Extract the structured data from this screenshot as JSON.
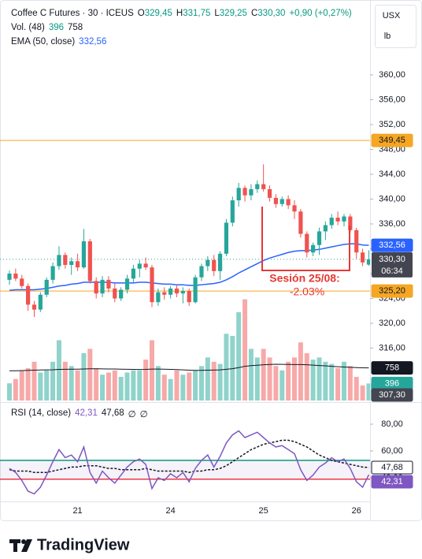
{
  "chart_data": [
    {
      "type": "candlestick",
      "title": "Coffee C Futures · 30 · ICEUS",
      "ohlc": [
        {
          "key": "O",
          "value": "329,45"
        },
        {
          "key": "H",
          "value": "331,75"
        },
        {
          "key": "L",
          "value": "329,25"
        },
        {
          "key": "C",
          "value": "330,30"
        }
      ],
      "change": "+0,90 (+0,27%)",
      "unit": "USX",
      "unit_sub": "lb",
      "x": [
        null,
        null,
        null,
        null,
        null,
        null,
        null,
        null,
        null,
        null,
        null,
        "21",
        null,
        null,
        null,
        null,
        null,
        null,
        null,
        null,
        null,
        null,
        null,
        null,
        null,
        null,
        "24",
        null,
        null,
        null,
        null,
        null,
        null,
        null,
        null,
        null,
        null,
        null,
        null,
        null,
        null,
        "25",
        null,
        null,
        null,
        null,
        null,
        null,
        null,
        null,
        null,
        null,
        null,
        null,
        null,
        null,
        "26",
        null,
        null
      ],
      "open": [
        327.0,
        328.0,
        327.2,
        326.0,
        323.0,
        322.2,
        324.6,
        327.0,
        329.2,
        331.0,
        329.4,
        330.0,
        329.0,
        333.2,
        326.8,
        324.8,
        327.0,
        325.6,
        324.0,
        325.4,
        327.2,
        328.8,
        329.6,
        329.0,
        323.4,
        325.0,
        324.6,
        325.6,
        324.8,
        325.2,
        323.4,
        327.4,
        329.2,
        330.2,
        328.4,
        331.2,
        336.2,
        339.8,
        341.8,
        340.6,
        341.6,
        342.4,
        341.6,
        340.2,
        339.2,
        340.0,
        339.0,
        338.0,
        334.4,
        331.4,
        332.6,
        334.8,
        335.8,
        337.0,
        336.4,
        337.2,
        335.0,
        331.4,
        329.45
      ],
      "high": [
        328.5,
        328.8,
        327.8,
        326.4,
        323.6,
        325.0,
        327.4,
        329.8,
        332.4,
        331.4,
        330.6,
        331.2,
        335.2,
        333.6,
        327.4,
        327.6,
        327.6,
        326.4,
        325.8,
        327.8,
        329.4,
        330.2,
        330.6,
        329.4,
        325.6,
        325.8,
        326.0,
        326.2,
        325.8,
        325.6,
        327.8,
        329.6,
        330.8,
        331.0,
        331.6,
        336.8,
        340.4,
        342.6,
        342.2,
        342.4,
        343.0,
        345.6,
        342.2,
        340.8,
        340.4,
        340.6,
        339.8,
        338.4,
        334.8,
        333.0,
        335.4,
        336.4,
        337.6,
        338.0,
        337.6,
        337.6,
        335.4,
        332.0,
        331.75
      ],
      "low": [
        326.2,
        326.8,
        325.6,
        322.0,
        321.0,
        321.8,
        324.2,
        326.4,
        328.6,
        328.8,
        327.8,
        328.4,
        328.8,
        326.4,
        324.0,
        324.2,
        325.0,
        323.4,
        323.6,
        324.8,
        326.6,
        327.4,
        328.6,
        322.6,
        322.8,
        323.8,
        324.0,
        324.2,
        323.2,
        322.8,
        323.2,
        326.8,
        328.4,
        327.6,
        327.0,
        330.8,
        335.6,
        338.8,
        339.6,
        339.8,
        341.0,
        341.2,
        339.6,
        338.6,
        338.8,
        338.4,
        336.8,
        333.8,
        330.6,
        330.8,
        331.0,
        333.4,
        335.2,
        335.8,
        335.6,
        334.6,
        330.4,
        329.2,
        329.25
      ],
      "close": [
        328.0,
        327.2,
        326.0,
        323.0,
        322.2,
        324.6,
        327.0,
        329.2,
        331.0,
        329.4,
        330.0,
        329.0,
        333.2,
        326.8,
        324.8,
        327.0,
        325.6,
        324.0,
        325.4,
        327.2,
        328.8,
        329.6,
        329.0,
        323.4,
        325.0,
        324.6,
        325.6,
        324.8,
        325.2,
        323.4,
        327.4,
        329.2,
        330.2,
        328.4,
        331.2,
        336.2,
        339.8,
        341.8,
        340.6,
        341.6,
        342.4,
        341.6,
        340.2,
        339.2,
        340.0,
        339.0,
        338.0,
        334.4,
        331.4,
        332.6,
        334.8,
        335.8,
        337.0,
        336.4,
        337.2,
        335.0,
        331.4,
        329.8,
        330.3
      ],
      "up_color": "#26a69a",
      "down_color": "#ef5350",
      "last": {
        "label": "330,30",
        "countdown": "06:34",
        "color": "#434651"
      },
      "ylim": [
        307.56,
        372.06
      ],
      "yticks": [
        {
          "value": 360,
          "label": "360,00"
        },
        {
          "value": 356,
          "label": "356,00"
        },
        {
          "value": 352,
          "label": "352,00"
        },
        {
          "value": 348,
          "label": "348,00"
        },
        {
          "value": 344,
          "label": "344,00"
        },
        {
          "value": 340,
          "label": "340,00"
        },
        {
          "value": 336,
          "label": "336,00"
        },
        {
          "value": 332,
          "label": "332,00"
        },
        {
          "value": 328,
          "label": "328,00"
        },
        {
          "value": 324,
          "label": "324,00"
        },
        {
          "value": 320,
          "label": "320,00"
        },
        {
          "value": 316,
          "label": "316,00"
        }
      ],
      "levels": [
        {
          "value": 349.45,
          "label": "349,45",
          "color": "#f5a623"
        },
        {
          "value": 325.2,
          "label": "325,20",
          "color": "#f5a623"
        }
      ],
      "cursor_price": {
        "value": 307.3,
        "label": "307,30",
        "color": "#434651"
      },
      "ema": {
        "name": "EMA (50, close)",
        "color": "#2962ff",
        "last_label": "332,56",
        "values": [
          325.3,
          325.4,
          325.4,
          325.4,
          325.4,
          325.5,
          325.6,
          325.8,
          326.0,
          326.1,
          326.3,
          326.4,
          326.6,
          326.6,
          326.6,
          326.6,
          326.6,
          326.5,
          326.5,
          326.5,
          326.5,
          326.6,
          326.6,
          326.5,
          326.4,
          326.3,
          326.3,
          326.2,
          326.2,
          326.1,
          326.1,
          326.2,
          326.3,
          326.4,
          326.6,
          327.0,
          327.5,
          328.1,
          328.6,
          329.1,
          329.6,
          330.1,
          330.5,
          330.8,
          331.1,
          331.4,
          331.6,
          331.7,
          331.7,
          331.8,
          331.9,
          332.1,
          332.3,
          332.5,
          332.7,
          332.8,
          332.8,
          332.6,
          332.56
        ]
      },
      "volume": {
        "name": "Vol. (48)",
        "ylim": [
          0,
          9300
        ],
        "up_color": "#8fd3cb",
        "down_color": "#f6a9a8",
        "ma_color": "#131722",
        "values": [
          400,
          500,
          700,
          750,
          900,
          650,
          700,
          900,
          1400,
          900,
          800,
          700,
          1100,
          1200,
          750,
          600,
          650,
          700,
          550,
          650,
          700,
          700,
          950,
          1400,
          800,
          600,
          500,
          700,
          600,
          650,
          700,
          800,
          1000,
          900,
          850,
          1550,
          1500,
          2050,
          2350,
          1200,
          1000,
          1200,
          1000,
          800,
          700,
          900,
          1000,
          1350,
          1100,
          950,
          1000,
          900,
          850,
          750,
          900,
          800,
          550,
          350,
          396
        ],
        "ma_values": [
          690,
          690,
          695,
          700,
          705,
          710,
          712,
          715,
          722,
          725,
          727,
          728,
          732,
          738,
          738,
          735,
          733,
          732,
          728,
          725,
          722,
          720,
          722,
          730,
          730,
          728,
          722,
          718,
          712,
          705,
          700,
          700,
          705,
          708,
          712,
          725,
          740,
          765,
          795,
          810,
          820,
          830,
          838,
          842,
          840,
          838,
          835,
          835,
          830,
          822,
          812,
          805,
          795,
          785,
          778,
          772,
          765,
          760,
          758
        ]
      },
      "annotation": {
        "text": "Sesión 25/08:",
        "value": "-2.03%",
        "color": "#e53935"
      },
      "grid": false
    },
    {
      "type": "line",
      "title": "RSI (14, close)",
      "ylim": [
        22.35,
        95.3
      ],
      "yticks": [
        {
          "value": 80,
          "label": "80,00"
        },
        {
          "value": 60,
          "label": "60,00"
        },
        {
          "value": 40,
          "label": "40,00"
        }
      ],
      "bands": [
        {
          "value": 53,
          "color": "#089981"
        },
        {
          "value": 39,
          "color": "#f23645"
        }
      ],
      "extra_values": [
        "∅",
        "∅"
      ],
      "series": [
        {
          "name": "RSI",
          "color": "#7e57c2",
          "label": "42,31",
          "values": [
            47,
            44,
            38,
            30,
            28,
            33,
            42,
            52,
            61,
            55,
            57,
            52,
            63,
            44,
            36,
            45,
            40,
            36,
            42,
            48,
            52,
            54,
            50,
            32,
            40,
            38,
            43,
            40,
            44,
            37,
            47,
            53,
            57,
            48,
            56,
            66,
            72,
            75,
            70,
            72,
            74,
            70,
            66,
            63,
            64,
            61,
            58,
            46,
            38,
            42,
            48,
            51,
            55,
            52,
            54,
            47,
            37,
            33,
            42.31
          ]
        },
        {
          "name": "RSI MA",
          "color": "#131722",
          "label": "47,68",
          "values": [
            46,
            45,
            45,
            45,
            44,
            44,
            44,
            45,
            46,
            47,
            48,
            48,
            49,
            49,
            49,
            48,
            47,
            47,
            46,
            46,
            46,
            46,
            47,
            46,
            45,
            45,
            45,
            45,
            45,
            44,
            45,
            45,
            46,
            46,
            47,
            49,
            52,
            55,
            58,
            61,
            63,
            65,
            66,
            67,
            68,
            68,
            67,
            65,
            63,
            60,
            57,
            55,
            53,
            52,
            51,
            50,
            49,
            48,
            47.68
          ]
        }
      ]
    }
  ],
  "footer": {
    "brand": "TradingView"
  }
}
